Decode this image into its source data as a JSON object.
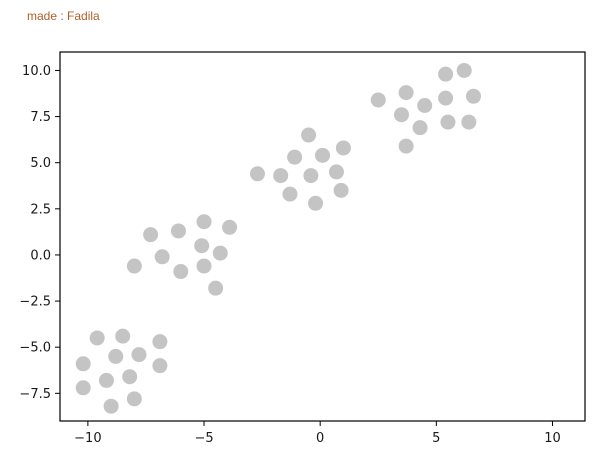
{
  "credit_text": "made : Fadila",
  "chart_data": {
    "type": "scatter",
    "title": "",
    "xlabel": "",
    "ylabel": "",
    "xlim": [
      -11.2,
      11.4
    ],
    "ylim": [
      -9.0,
      11.0
    ],
    "xticks": [
      -10,
      -5,
      0,
      5,
      10
    ],
    "xtick_labels": [
      "−10",
      "−5",
      "0",
      "5",
      "10"
    ],
    "yticks": [
      -7.5,
      -5.0,
      -2.5,
      0.0,
      2.5,
      5.0,
      7.5,
      10.0
    ],
    "ytick_labels": [
      "−7.5",
      "−5.0",
      "−2.5",
      "0.0",
      "2.5",
      "5.0",
      "7.5",
      "10.0"
    ],
    "grid": false,
    "marker_color": "#c4c4c4",
    "points": [
      {
        "x": -9.6,
        "y": -4.5
      },
      {
        "x": -8.5,
        "y": -4.4
      },
      {
        "x": -6.9,
        "y": -4.7
      },
      {
        "x": -10.2,
        "y": -5.9
      },
      {
        "x": -8.8,
        "y": -5.5
      },
      {
        "x": -7.8,
        "y": -5.4
      },
      {
        "x": -6.9,
        "y": -6.0
      },
      {
        "x": -10.2,
        "y": -7.2
      },
      {
        "x": -9.2,
        "y": -6.8
      },
      {
        "x": -8.2,
        "y": -6.6
      },
      {
        "x": -9.0,
        "y": -8.2
      },
      {
        "x": -8.0,
        "y": -7.8
      },
      {
        "x": -7.3,
        "y": 1.1
      },
      {
        "x": -6.1,
        "y": 1.3
      },
      {
        "x": -5.0,
        "y": 1.8
      },
      {
        "x": -3.9,
        "y": 1.5
      },
      {
        "x": -8.0,
        "y": -0.6
      },
      {
        "x": -6.8,
        "y": -0.1
      },
      {
        "x": -5.1,
        "y": 0.5
      },
      {
        "x": -4.3,
        "y": 0.1
      },
      {
        "x": -6.0,
        "y": -0.9
      },
      {
        "x": -5.0,
        "y": -0.6
      },
      {
        "x": -4.5,
        "y": -1.8
      },
      {
        "x": -0.5,
        "y": 6.5
      },
      {
        "x": -1.1,
        "y": 5.3
      },
      {
        "x": 0.1,
        "y": 5.4
      },
      {
        "x": 1.0,
        "y": 5.8
      },
      {
        "x": -2.7,
        "y": 4.4
      },
      {
        "x": -1.7,
        "y": 4.3
      },
      {
        "x": -0.4,
        "y": 4.3
      },
      {
        "x": 0.7,
        "y": 4.5
      },
      {
        "x": -1.3,
        "y": 3.3
      },
      {
        "x": 0.9,
        "y": 3.5
      },
      {
        "x": -0.2,
        "y": 2.8
      },
      {
        "x": 5.4,
        "y": 9.8
      },
      {
        "x": 6.2,
        "y": 10.0
      },
      {
        "x": 2.5,
        "y": 8.4
      },
      {
        "x": 3.7,
        "y": 8.8
      },
      {
        "x": 4.5,
        "y": 8.1
      },
      {
        "x": 5.4,
        "y": 8.5
      },
      {
        "x": 6.6,
        "y": 8.6
      },
      {
        "x": 3.5,
        "y": 7.6
      },
      {
        "x": 5.5,
        "y": 7.2
      },
      {
        "x": 6.4,
        "y": 7.2
      },
      {
        "x": 4.3,
        "y": 6.9
      },
      {
        "x": 3.7,
        "y": 5.9
      }
    ]
  }
}
